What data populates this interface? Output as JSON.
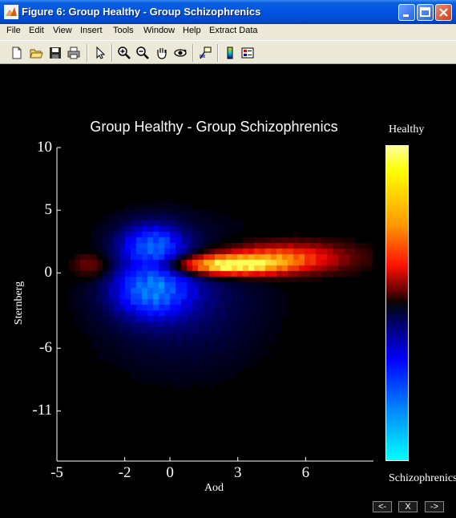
{
  "window": {
    "title": "Figure 6: Group Healthy - Group Schizophrenics",
    "controls": [
      "minimize",
      "maximize",
      "close"
    ]
  },
  "menu": {
    "items": [
      {
        "label": "File"
      },
      {
        "label": "Edit"
      },
      {
        "label": "View"
      },
      {
        "label": "Insert"
      },
      {
        "label": "Tools"
      },
      {
        "label": "Window"
      },
      {
        "label": "Help"
      },
      {
        "label": "Extract Data"
      }
    ]
  },
  "toolbar": {
    "tools": [
      "new-file-icon",
      "open-folder-icon",
      "save-icon",
      "print-icon",
      "pointer-icon",
      "zoom-in-icon",
      "zoom-out-icon",
      "pan-hand-icon",
      "rotate-3d-icon",
      "data-cursor-icon",
      "colorbar-icon",
      "legend-icon"
    ]
  },
  "figure": {
    "nav_prev": "<-",
    "nav_close": "X",
    "nav_next": "->"
  },
  "chart_data": {
    "type": "heatmap",
    "title": "Group Healthy - Group Schizophrenics",
    "xlabel": "Aod",
    "ylabel": "Sternberg",
    "xticks": [
      "-5",
      "-2",
      "0",
      "3",
      "6"
    ],
    "yticks": [
      "10",
      "5",
      "0",
      "-6",
      "-11"
    ],
    "xlim": [
      -5,
      9
    ],
    "ylim": [
      -15,
      10
    ],
    "colorbar": {
      "top_label": "Healthy",
      "bottom_label": "Schizophrenics",
      "colormap": "cyan-blue-black-red-yellow"
    },
    "background": "#000000",
    "blobs": [
      {
        "name": "healthy-peak",
        "x": 2.5,
        "y": 0.6,
        "sx": 1.7,
        "sy": 0.55,
        "amp": 1.0
      },
      {
        "name": "healthy-tail",
        "x": 5.0,
        "y": 1.2,
        "sx": 1.9,
        "sy": 0.8,
        "amp": 0.55
      },
      {
        "name": "healthy-left",
        "x": -3.5,
        "y": 0.6,
        "sx": 0.6,
        "sy": 0.7,
        "amp": 0.22
      },
      {
        "name": "schizo-upper",
        "x": -0.8,
        "y": 2.2,
        "sx": 1.0,
        "sy": 1.2,
        "amp": -0.6
      },
      {
        "name": "schizo-lower",
        "x": -0.8,
        "y": -1.4,
        "sx": 1.2,
        "sy": 1.5,
        "amp": -0.65
      },
      {
        "name": "schizo-spread",
        "x": 0.5,
        "y": -2.0,
        "sx": 2.5,
        "sy": 3.8,
        "amp": -0.18
      }
    ]
  }
}
